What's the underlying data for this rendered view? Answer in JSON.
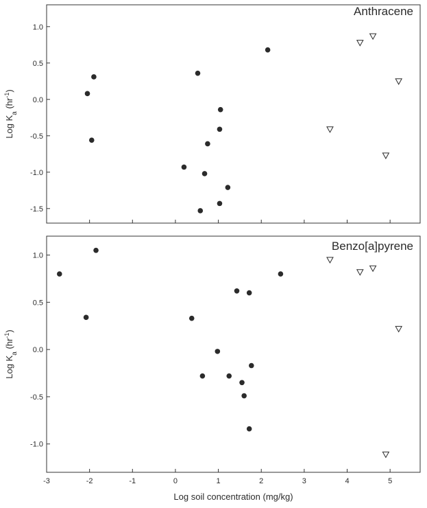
{
  "chart_data": [
    {
      "type": "scatter",
      "title": "Anthracene",
      "xlabel": "Log soil concentration (mg/kg)",
      "ylabel": "Log K_a (hr^-1)",
      "ylabel_parts": {
        "prefix": "Log K",
        "sub": "a",
        "unit_open": " (hr",
        "sup": "-1",
        "unit_close": ")"
      },
      "xlim": [
        -3,
        5.7
      ],
      "ylim": [
        -1.7,
        1.3
      ],
      "xticks": [
        -3,
        -2,
        -1,
        0,
        1,
        2,
        3,
        4,
        5
      ],
      "yticks": [
        -1.5,
        -1.0,
        -0.5,
        0.0,
        0.5,
        1.0
      ],
      "ytick_labels": [
        "-1.5",
        "-1.0",
        "-0.5",
        "0.0",
        "0.5",
        "1.0"
      ],
      "grid": false,
      "series": [
        {
          "marker": "filled-circle",
          "color": "#2b2b2b",
          "points": [
            [
              -2.05,
              0.08
            ],
            [
              -1.9,
              0.31
            ],
            [
              -1.95,
              -0.56
            ],
            [
              0.52,
              0.36
            ],
            [
              1.05,
              -0.14
            ],
            [
              1.03,
              -0.41
            ],
            [
              0.75,
              -0.61
            ],
            [
              0.2,
              -0.93
            ],
            [
              0.68,
              -1.02
            ],
            [
              1.22,
              -1.21
            ],
            [
              1.03,
              -1.43
            ],
            [
              0.58,
              -1.53
            ],
            [
              2.15,
              0.68
            ]
          ]
        },
        {
          "marker": "open-triangle-down",
          "color": "#2b2b2b",
          "points": [
            [
              4.3,
              0.78
            ],
            [
              4.6,
              0.87
            ],
            [
              5.2,
              0.25
            ],
            [
              3.6,
              -0.41
            ],
            [
              4.9,
              -0.77
            ]
          ]
        }
      ]
    },
    {
      "type": "scatter",
      "title": "Benzo[a]pyrene",
      "xlabel": "Log soil concentration (mg/kg)",
      "ylabel": "Log K_a (hr^-1)",
      "ylabel_parts": {
        "prefix": "Log K",
        "sub": "a",
        "unit_open": " (hr",
        "sup": "-1",
        "unit_close": ")"
      },
      "xlim": [
        -3,
        5.7
      ],
      "ylim": [
        -1.3,
        1.2
      ],
      "xticks": [
        -3,
        -2,
        -1,
        0,
        1,
        2,
        3,
        4,
        5
      ],
      "xtick_labels": [
        "-3",
        "-2",
        "-1",
        "0",
        "1",
        "2",
        "3",
        "4",
        "5"
      ],
      "yticks": [
        -1.0,
        -0.5,
        0.0,
        0.5,
        1.0
      ],
      "ytick_labels": [
        "-1.0",
        "-0.5",
        "0.0",
        "0.5",
        "1.0"
      ],
      "grid": false,
      "series": [
        {
          "marker": "filled-circle",
          "color": "#2b2b2b",
          "points": [
            [
              -2.7,
              0.8
            ],
            [
              -1.85,
              1.05
            ],
            [
              -2.08,
              0.34
            ],
            [
              0.38,
              0.33
            ],
            [
              1.43,
              0.62
            ],
            [
              1.72,
              0.6
            ],
            [
              2.45,
              0.8
            ],
            [
              0.98,
              -0.02
            ],
            [
              1.77,
              -0.17
            ],
            [
              0.63,
              -0.28
            ],
            [
              1.25,
              -0.28
            ],
            [
              1.55,
              -0.35
            ],
            [
              1.6,
              -0.49
            ],
            [
              1.72,
              -0.84
            ]
          ]
        },
        {
          "marker": "open-triangle-down",
          "color": "#2b2b2b",
          "points": [
            [
              3.6,
              0.95
            ],
            [
              4.3,
              0.82
            ],
            [
              4.6,
              0.86
            ],
            [
              5.2,
              0.22
            ],
            [
              4.9,
              -1.11
            ]
          ]
        }
      ]
    }
  ]
}
